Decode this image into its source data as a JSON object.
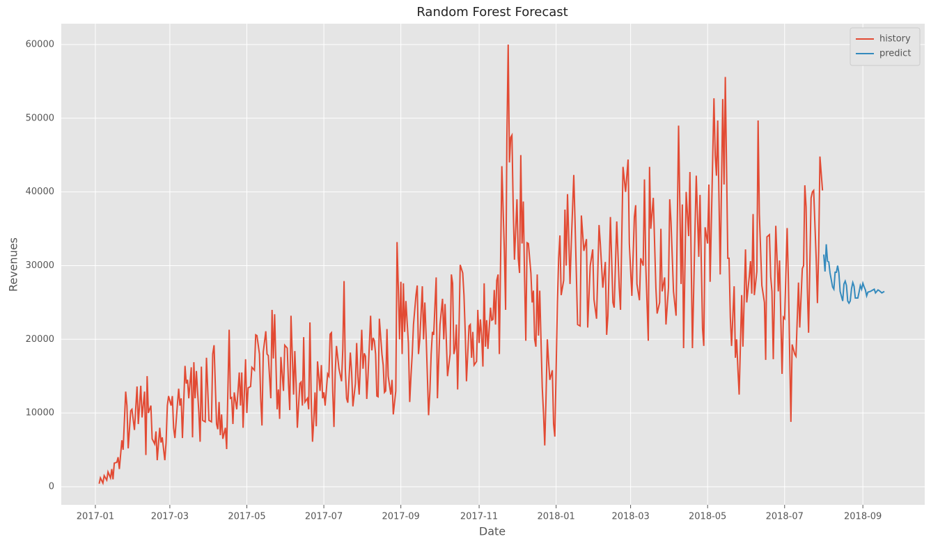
{
  "chart_data": {
    "type": "line",
    "title": "Random Forest Forecast",
    "xlabel": "Date",
    "ylabel": "Revenues",
    "xlim": [
      -27,
      657
    ],
    "ylim": [
      -2460,
      62830
    ],
    "xticks": [
      {
        "value": 0,
        "label": "2017-01"
      },
      {
        "value": 59,
        "label": "2017-03"
      },
      {
        "value": 120,
        "label": "2017-05"
      },
      {
        "value": 181,
        "label": "2017-07"
      },
      {
        "value": 242,
        "label": "2017-09"
      },
      {
        "value": 304,
        "label": "2017-11"
      },
      {
        "value": 365,
        "label": "2018-01"
      },
      {
        "value": 424,
        "label": "2018-03"
      },
      {
        "value": 485,
        "label": "2018-05"
      },
      {
        "value": 546,
        "label": "2018-07"
      },
      {
        "value": 608,
        "label": "2018-09"
      }
    ],
    "yticks": [
      0,
      10000,
      20000,
      30000,
      40000,
      50000,
      60000
    ],
    "grid": true,
    "legend": "upper right",
    "series": [
      {
        "name": "history",
        "color": "#e24a33",
        "x": [
          3,
          4,
          6,
          7,
          9,
          10,
          12,
          13,
          14,
          15,
          17,
          18,
          19,
          21,
          22,
          24,
          25,
          26,
          28,
          29,
          31,
          33,
          34,
          36,
          37,
          39,
          40,
          41,
          42,
          44,
          45,
          47,
          48,
          49,
          51,
          52,
          53,
          55,
          56,
          57,
          58,
          60,
          61,
          62,
          63,
          65,
          66,
          67,
          68,
          69,
          71,
          72,
          73,
          74,
          76,
          77,
          78,
          79,
          80,
          82,
          83,
          84,
          85,
          87,
          88,
          90,
          92,
          93,
          94,
          96,
          97,
          98,
          99,
          100,
          101,
          103,
          104,
          106,
          107,
          108,
          109,
          110,
          112,
          114,
          115,
          116,
          117,
          119,
          120,
          121,
          123,
          124,
          126,
          127,
          128,
          130,
          131,
          132,
          133,
          135,
          136,
          137,
          139,
          140,
          141,
          142,
          144,
          145,
          146,
          147,
          149,
          150,
          152,
          153,
          154,
          155,
          157,
          158,
          159,
          160,
          162,
          163,
          164,
          165,
          166,
          168,
          169,
          170,
          171,
          172,
          173,
          174,
          175,
          176,
          178,
          179,
          180,
          181,
          182,
          184,
          185,
          186,
          187,
          188,
          189,
          190,
          191,
          193,
          195,
          196,
          197,
          198,
          199,
          200,
          202,
          203,
          204,
          206,
          207,
          208,
          209,
          211,
          212,
          213,
          214,
          215,
          216,
          218,
          219,
          220,
          221,
          222,
          223,
          224,
          225,
          227,
          228,
          229,
          230,
          231,
          232,
          234,
          235,
          236,
          238,
          239,
          240,
          241,
          242,
          243,
          244,
          245,
          246,
          248,
          249,
          250,
          251,
          252,
          254,
          255,
          256,
          257,
          259,
          260,
          261,
          262,
          264,
          265,
          266,
          267,
          268,
          270,
          271,
          272,
          273,
          275,
          276,
          277,
          278,
          279,
          281,
          282,
          283,
          284,
          285,
          286,
          287,
          288,
          289,
          291,
          292,
          293,
          294,
          295,
          296,
          297,
          298,
          299,
          300,
          302,
          303,
          304,
          305,
          306,
          307,
          308,
          309,
          310,
          311,
          313,
          314,
          315,
          316,
          317,
          318,
          319,
          320,
          322,
          324,
          325,
          326,
          327,
          328,
          329,
          330,
          331,
          332,
          334,
          335,
          336,
          337,
          338,
          339,
          340,
          341,
          342,
          343,
          345,
          346,
          347,
          348,
          349,
          350,
          351,
          352,
          353,
          354,
          355,
          356,
          357,
          358,
          359,
          360,
          362,
          363,
          364,
          366,
          367,
          368,
          369,
          371,
          372,
          373,
          374,
          376,
          377,
          379,
          380,
          382,
          384,
          385,
          387,
          389,
          390,
          392,
          394,
          395,
          397,
          399,
          400,
          402,
          404,
          405,
          406,
          408,
          410,
          411,
          413,
          415,
          416,
          418,
          420,
          422,
          423,
          425,
          427,
          428,
          429,
          431,
          432,
          434,
          435,
          436,
          438,
          439,
          440,
          442,
          444,
          445,
          447,
          448,
          449,
          451,
          452,
          454,
          455,
          456,
          458,
          460,
          462,
          464,
          465,
          466,
          468,
          470,
          471,
          473,
          475,
          476,
          478,
          479,
          481,
          482,
          483,
          485,
          486,
          487,
          490,
          491,
          492,
          493,
          495,
          497,
          498,
          499,
          501,
          502,
          503,
          504,
          506,
          507,
          508,
          509,
          510,
          512,
          513,
          515,
          516,
          518,
          519,
          520,
          521,
          522,
          524,
          525,
          526,
          528,
          530,
          531,
          532,
          534,
          535,
          536,
          537,
          539,
          541,
          542,
          544,
          545,
          546,
          548,
          549,
          551,
          552,
          554,
          555,
          557,
          558,
          560,
          561,
          562,
          563,
          564,
          565,
          567,
          568,
          569,
          571,
          572,
          573,
          574,
          576
        ],
        "values": [
          400,
          1200,
          500,
          1500,
          900,
          2000,
          1200,
          2400,
          1000,
          3200,
          3300,
          4000,
          2400,
          6300,
          5000,
          12900,
          11000,
          5200,
          10300,
          10500,
          7700,
          13600,
          8500,
          13700,
          9400,
          12900,
          4300,
          15000,
          10000,
          11000,
          6500,
          5800,
          7500,
          3600,
          8000,
          6000,
          6700,
          3600,
          6000,
          11000,
          12300,
          11000,
          12300,
          8000,
          6600,
          11200,
          13300,
          11000,
          12000,
          6600,
          16400,
          14000,
          14500,
          12000,
          16200,
          6700,
          16900,
          12000,
          15700,
          10000,
          6100,
          16300,
          9000,
          8800,
          17500,
          9000,
          8800,
          18000,
          19200,
          8500,
          7800,
          11500,
          7000,
          9800,
          6500,
          8000,
          5100,
          21300,
          12000,
          12100,
          8500,
          12800,
          10500,
          15500,
          11000,
          15500,
          8000,
          17300,
          10000,
          13400,
          13600,
          16200,
          15800,
          20600,
          20500,
          18000,
          12000,
          8300,
          18300,
          21100,
          18000,
          17800,
          12000,
          24000,
          17400,
          23400,
          10500,
          13200,
          9200,
          17600,
          13000,
          19200,
          18800,
          14000,
          10400,
          23200,
          12500,
          18400,
          14000,
          8000,
          14000,
          14200,
          11000,
          20300,
          11500,
          12000,
          10500,
          22300,
          12000,
          6100,
          9000,
          12800,
          8200,
          17000,
          13000,
          16500,
          12000,
          12800,
          11000,
          15300,
          15000,
          20700,
          20900,
          13000,
          8100,
          15500,
          19100,
          16000,
          14300,
          18700,
          27900,
          16000,
          12000,
          11400,
          18200,
          15500,
          10900,
          14000,
          19500,
          15000,
          12500,
          21300,
          16000,
          18100,
          17700,
          11900,
          15000,
          23200,
          18500,
          20200,
          19800,
          18000,
          12300,
          12200,
          22800,
          18000,
          16500,
          12800,
          13000,
          21400,
          15000,
          12500,
          14500,
          9800,
          13000,
          33200,
          27000,
          20000,
          27800,
          18000,
          27600,
          21000,
          25200,
          19500,
          11500,
          15000,
          18000,
          22000,
          26000,
          27300,
          18000,
          20000,
          27200,
          20000,
          25000,
          20600,
          9700,
          13000,
          18000,
          21000,
          20600,
          28400,
          12000,
          17000,
          22000,
          25500,
          20000,
          24800,
          20000,
          15000,
          18000,
          28800,
          27600,
          18000,
          18800,
          22000,
          13200,
          21000,
          30100,
          29000,
          26000,
          21000,
          14300,
          18000,
          21800,
          22000,
          17500,
          21000,
          16500,
          17000,
          24000,
          19500,
          22700,
          20500,
          16300,
          27600,
          19000,
          22600,
          18700,
          24300,
          22600,
          22700,
          26700,
          22000,
          28000,
          28800,
          18000,
          43500,
          32000,
          24000,
          47000,
          60000,
          44000,
          47400,
          47700,
          38000,
          30800,
          39000,
          31000,
          29000,
          45000,
          33000,
          38700,
          28500,
          19800,
          33100,
          33000,
          29000,
          25000,
          26600,
          20000,
          19000,
          28800,
          20500,
          26600,
          20000,
          13500,
          10000,
          5600,
          12000,
          20000,
          17000,
          14500,
          15800,
          8500,
          6800,
          25000,
          31000,
          34100,
          26000,
          28000,
          37600,
          30000,
          39700,
          27500,
          33000,
          42300,
          36000,
          22000,
          21800,
          36800,
          32000,
          33600,
          21600,
          30000,
          32200,
          25400,
          22800,
          35500,
          33000,
          27000,
          30500,
          20600,
          23200,
          36600,
          25000,
          24300,
          36000,
          27000,
          24000,
          43400,
          40000,
          44400,
          33000,
          25900,
          36600,
          38200,
          27500,
          25300,
          31000,
          30000,
          41700,
          30000,
          19800,
          43400,
          35000,
          39200,
          27000,
          23500,
          25000,
          35000,
          26500,
          28400,
          22000,
          27000,
          39000,
          36000,
          26500,
          23200,
          49000,
          27500,
          38300,
          18800,
          40000,
          34000,
          42700,
          18800,
          35000,
          42200,
          31200,
          39600,
          21500,
          19100,
          35200,
          33000,
          41000,
          27800,
          52700,
          45000,
          42200,
          49700,
          28800,
          52600,
          41000,
          55600,
          31000,
          31000,
          23000,
          19100,
          27200,
          17500,
          20000,
          15900,
          12500,
          26000,
          19000,
          32200,
          25000,
          28500,
          30600,
          26200,
          37000,
          26000,
          29200,
          49700,
          37000,
          27300,
          25000,
          17200,
          33900,
          34200,
          28500,
          26500,
          17300,
          35400,
          26500,
          30700,
          15300,
          23000,
          22800,
          35100,
          28000,
          8800,
          19300,
          18000,
          17700,
          27700,
          21600,
          29600,
          30000,
          40900,
          38000,
          27000,
          20900,
          39200,
          40000,
          40200,
          31000,
          24900,
          32000,
          44800,
          40200
        ]
      },
      {
        "name": "predict",
        "color": "#348abd",
        "x": [
          577,
          578,
          579,
          580,
          581,
          582,
          584,
          585,
          586,
          587,
          588,
          589,
          590,
          592,
          593,
          594,
          595,
          596,
          597,
          598,
          599,
          600,
          601,
          602,
          604,
          605,
          606,
          607,
          608,
          609,
          610,
          611,
          612,
          614,
          615,
          617,
          618,
          620,
          621,
          623,
          625
        ],
        "values": [
          31500,
          29200,
          32900,
          30600,
          30500,
          29000,
          27100,
          26800,
          29100,
          29100,
          30000,
          29000,
          26500,
          25200,
          27500,
          27900,
          27300,
          25200,
          24900,
          25200,
          26900,
          27700,
          27200,
          25600,
          25600,
          26400,
          27300,
          26800,
          27600,
          27100,
          26700,
          25900,
          26400,
          26500,
          26600,
          26800,
          26300,
          26700,
          26600,
          26300,
          26500
        ]
      }
    ]
  }
}
